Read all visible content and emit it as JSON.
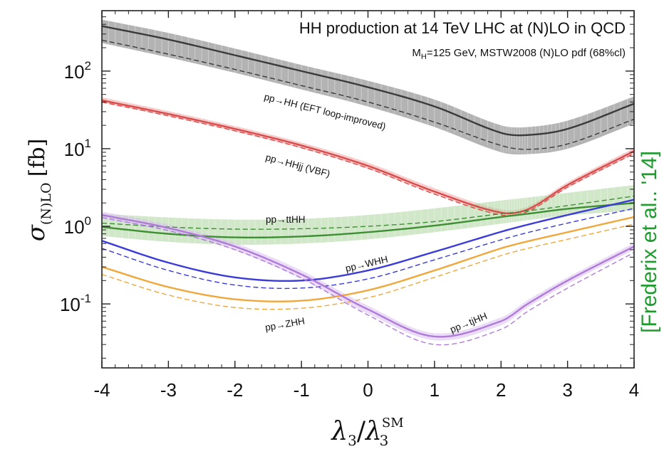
{
  "chart_data": {
    "type": "line",
    "title": "HH production at 14 TeV LHC at (N)LO in QCD",
    "subtitle": "M_H=125 GeV, MSTW2008 (N)LO pdf (68%cl)",
    "subtitle_parts": {
      "main": "M",
      "sub": "H",
      "rest": "=125 GeV, MSTW2008 (N)LO pdf (68%cl)"
    },
    "xlabel": "λ3/λ3SM",
    "xlabel_parts": {
      "sym": "λ",
      "sub": "3",
      "sep": "/",
      "sym2": "λ",
      "sub2": "3",
      "sup2": "SM"
    },
    "ylabel": "σ(N)LO [fb]",
    "ylabel_parts": {
      "sym": "σ",
      "sub": "(N)LO",
      "unit": "[fb]"
    },
    "xlim": [
      -4,
      4
    ],
    "ylim": [
      0.015,
      600
    ],
    "yscale": "log",
    "x_ticks": [
      "-4",
      "-3",
      "-2",
      "-1",
      "0",
      "1",
      "2",
      "3",
      "4"
    ],
    "y_ticks": [
      {
        "value": 100,
        "base": "10",
        "exp": "2"
      },
      {
        "value": 10,
        "base": "10",
        "exp": "1"
      },
      {
        "value": 1,
        "base": "10",
        "exp": "0"
      },
      {
        "value": 0.1,
        "base": "10",
        "exp": "-1"
      }
    ],
    "citation": "[Frederix et al.. '14]",
    "x": [
      -4,
      -3,
      -2,
      -1,
      0,
      1,
      2,
      2.4,
      3,
      4
    ],
    "series": [
      {
        "name": "pp→HH (EFT loop-improved)",
        "color": "#3a3a3a",
        "band_color": "#9a9a9a",
        "nlo": [
          380,
          255,
          160,
          100,
          62,
          35,
          16,
          15,
          18,
          38
        ],
        "lo": [
          250,
          165,
          105,
          65,
          40,
          22,
          11,
          9.8,
          11.5,
          24
        ],
        "band_lo": [
          230,
          150,
          95,
          58,
          35,
          19,
          9,
          8.5,
          10,
          21
        ],
        "band_hi": [
          460,
          310,
          195,
          120,
          75,
          43,
          20,
          19,
          23,
          47
        ]
      },
      {
        "name": "pp→HHjj (VBF)",
        "color": "#d94a4a",
        "band_color": "#f2a0a0",
        "nlo": [
          42,
          28,
          18,
          11,
          6,
          2.8,
          1.5,
          1.65,
          3.4,
          9.3
        ],
        "lo": [
          40,
          26.5,
          17,
          10.3,
          5.6,
          2.6,
          1.4,
          1.55,
          3.2,
          8.7
        ],
        "band_lo": [
          39,
          26,
          16.6,
          10.1,
          5.5,
          2.6,
          1.4,
          1.53,
          3.1,
          8.5
        ],
        "band_hi": [
          46,
          30.5,
          19.6,
          12,
          6.6,
          3.1,
          1.65,
          1.8,
          3.7,
          10.2
        ]
      },
      {
        "name": "pp→ttHH",
        "color": "#3e8f34",
        "band_color": "#a9d49a",
        "nlo": [
          0.98,
          0.8,
          0.72,
          0.74,
          0.84,
          1.02,
          1.32,
          1.45,
          1.68,
          2.0
        ],
        "lo": [
          1.1,
          0.98,
          0.92,
          0.93,
          1.0,
          1.15,
          1.45,
          1.58,
          1.85,
          2.45
        ],
        "band_lo": [
          0.75,
          0.63,
          0.58,
          0.6,
          0.68,
          0.84,
          1.08,
          1.2,
          1.38,
          1.6
        ],
        "band_hi": [
          1.45,
          1.3,
          1.22,
          1.25,
          1.4,
          1.7,
          2.15,
          2.35,
          2.7,
          3.4
        ]
      },
      {
        "name": "pp→WHH",
        "color": "#3b3bd9",
        "band_color": "",
        "nlo": [
          0.65,
          0.34,
          0.22,
          0.2,
          0.27,
          0.47,
          0.85,
          1.05,
          1.4,
          2.2
        ],
        "lo": [
          0.52,
          0.27,
          0.175,
          0.16,
          0.21,
          0.37,
          0.67,
          0.83,
          1.1,
          1.7
        ]
      },
      {
        "name": "pp→ZHH",
        "color": "#f0a73c",
        "band_color": "",
        "nlo": [
          0.3,
          0.165,
          0.115,
          0.11,
          0.15,
          0.27,
          0.52,
          0.64,
          0.84,
          1.32
        ],
        "lo": [
          0.24,
          0.13,
          0.09,
          0.088,
          0.12,
          0.22,
          0.42,
          0.52,
          0.68,
          1.07
        ]
      },
      {
        "name": "pp→tjHH",
        "color": "#b07ad9",
        "band_color": "#d9bdf0",
        "nlo": [
          1.4,
          0.95,
          0.55,
          0.24,
          0.085,
          0.038,
          0.06,
          0.1,
          0.2,
          0.55
        ],
        "lo": [
          1.3,
          0.88,
          0.5,
          0.215,
          0.072,
          0.03,
          0.047,
          0.08,
          0.16,
          0.46
        ],
        "band_lo": [
          1.26,
          0.86,
          0.49,
          0.21,
          0.075,
          0.034,
          0.053,
          0.09,
          0.18,
          0.5
        ],
        "band_hi": [
          1.55,
          1.05,
          0.61,
          0.27,
          0.095,
          0.042,
          0.067,
          0.112,
          0.22,
          0.61
        ]
      }
    ],
    "labels": [
      {
        "series": "pp→HH (EFT loop-improved)",
        "text": "pp→HH (EFT loop-improved)"
      },
      {
        "series": "pp→HHjj (VBF)",
        "text": "pp→HHjj (VBF)"
      },
      {
        "series": "pp→ttHH",
        "text": "pp→ttHH"
      },
      {
        "series": "pp→WHH",
        "text": "pp→WHH"
      },
      {
        "series": "pp→ZHH",
        "text": "pp→ZHH"
      },
      {
        "series": "pp→tjHH",
        "text": "pp→tjHH"
      }
    ]
  }
}
